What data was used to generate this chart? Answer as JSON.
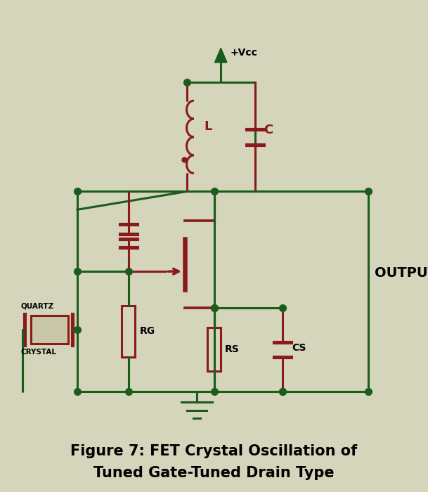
{
  "bg_color": "#d4d5bb",
  "wire_color": "#1a5c1a",
  "component_color": "#8b1a1a",
  "title_line1": "Figure 7: FET Crystal Oscillation of",
  "title_line2": "Tuned Gate-Tuned Drain Type",
  "title_fontsize": 15,
  "output_label": "OUTPUT",
  "vcc_label": "+Vcc",
  "figsize": [
    6.09,
    7.0
  ],
  "dpi": 100,
  "xlim": [
    0,
    12
  ],
  "ylim": [
    0,
    13
  ]
}
